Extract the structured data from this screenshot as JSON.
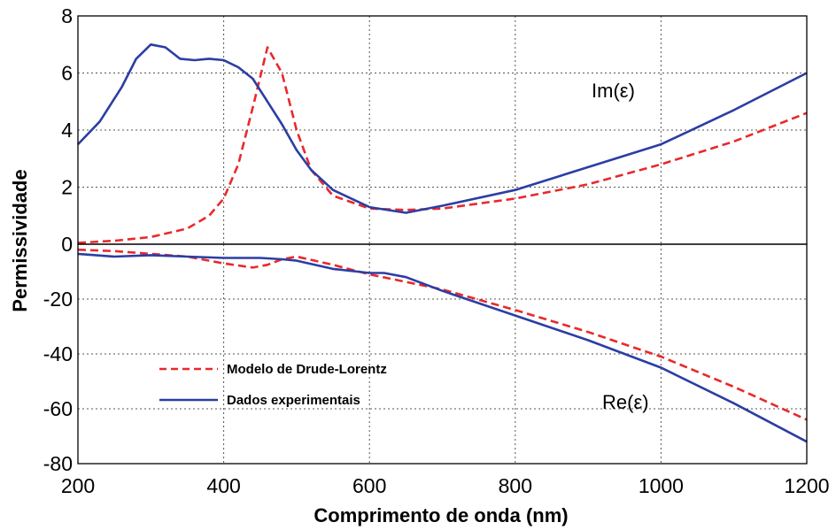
{
  "colors": {
    "model": "#e8292b",
    "experimental": "#2b3ea3"
  },
  "chart_data": {
    "type": "line",
    "xlabel": "Comprimento de onda (nm)",
    "ylabel": "Permissividade",
    "xlim": [
      200,
      1200
    ],
    "x_ticks": [
      "200",
      "400",
      "600",
      "800",
      "1000",
      "1200"
    ],
    "grid": true,
    "legend_placement": "lower-left of bottom panel",
    "legend": [
      {
        "label": "Modelo de Drude-Lorentz",
        "style": "dashed",
        "color": "#e8292b"
      },
      {
        "label": "Dados experimentais",
        "style": "solid",
        "color": "#2b3ea3"
      }
    ],
    "panels": [
      {
        "label": "Im(ε)",
        "ylim": [
          0,
          8
        ],
        "y_ticks": [
          "0",
          "2",
          "4",
          "6",
          "8"
        ],
        "series": [
          {
            "key": "model",
            "x": [
              200,
              250,
              300,
              350,
              380,
              400,
              420,
              440,
              460,
              480,
              500,
              520,
              550,
              600,
              650,
              700,
              800,
              900,
              1000,
              1100,
              1200
            ],
            "y": [
              0.05,
              0.12,
              0.25,
              0.55,
              1.0,
              1.6,
              2.8,
              4.8,
              6.9,
              6.0,
              4.0,
              2.6,
              1.7,
              1.25,
              1.2,
              1.25,
              1.6,
              2.1,
              2.8,
              3.6,
              4.6
            ]
          },
          {
            "key": "experimental",
            "x": [
              200,
              230,
              260,
              280,
              300,
              320,
              340,
              360,
              380,
              400,
              420,
              440,
              460,
              480,
              500,
              520,
              550,
              600,
              650,
              700,
              800,
              900,
              1000,
              1100,
              1200
            ],
            "y": [
              3.5,
              4.3,
              5.5,
              6.5,
              7.0,
              6.9,
              6.5,
              6.45,
              6.5,
              6.45,
              6.2,
              5.8,
              5.0,
              4.2,
              3.3,
              2.6,
              1.9,
              1.3,
              1.1,
              1.35,
              1.9,
              2.7,
              3.5,
              4.7,
              6.0
            ]
          }
        ]
      },
      {
        "label": "Re(ε)",
        "ylim": [
          -80,
          0
        ],
        "y_ticks": [
          "0",
          "-20",
          "-40",
          "-60",
          "-80"
        ],
        "series": [
          {
            "key": "model",
            "x": [
              200,
              250,
              300,
              350,
              400,
              440,
              460,
              480,
              500,
              550,
              600,
              700,
              800,
              900,
              1000,
              1100,
              1200
            ],
            "y": [
              -2,
              -2.5,
              -3.5,
              -4.5,
              -7,
              -8.5,
              -7.5,
              -5.5,
              -4.5,
              -7.5,
              -11,
              -16.5,
              -24,
              -32,
              -41,
              -52,
              -64
            ]
          },
          {
            "key": "experimental",
            "x": [
              200,
              250,
              300,
              350,
              400,
              450,
              480,
              500,
              550,
              600,
              620,
              650,
              700,
              800,
              900,
              1000,
              1100,
              1200
            ],
            "y": [
              -3.5,
              -4.5,
              -4,
              -4.5,
              -5,
              -5,
              -5.5,
              -6,
              -9,
              -10.5,
              -10.5,
              -12,
              -17,
              -26,
              -35,
              -45,
              -58,
              -72
            ]
          }
        ]
      }
    ]
  }
}
